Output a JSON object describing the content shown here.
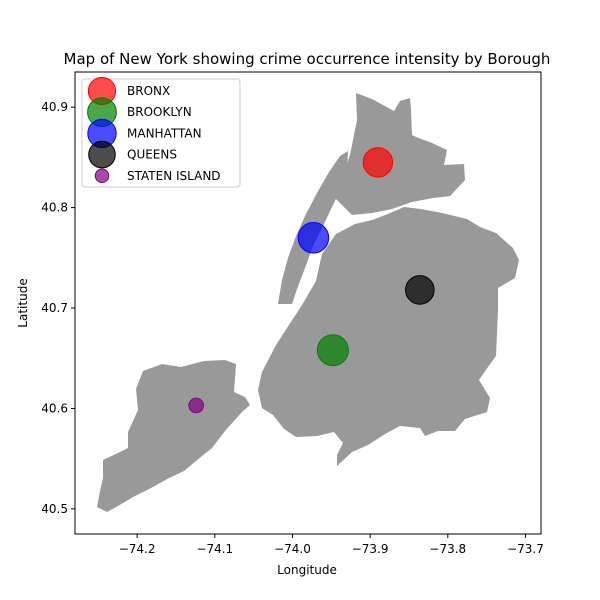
{
  "chart_data": {
    "type": "scatter",
    "title": "Map of New York showing crime occurrence intensity by Borough",
    "xlabel": "Longitude",
    "ylabel": "Latitude",
    "xlim": [
      -74.28,
      -73.68
    ],
    "ylim": [
      40.475,
      40.935
    ],
    "x_ticks": [
      -74.2,
      -74.1,
      -74.0,
      -73.9,
      -73.8,
      -73.7
    ],
    "x_tick_labels": [
      "−74.2",
      "−74.1",
      "−74.0",
      "−73.9",
      "−73.8",
      "−73.7"
    ],
    "y_ticks": [
      40.5,
      40.6,
      40.7,
      40.8,
      40.9
    ],
    "y_tick_labels": [
      "40.5",
      "40.6",
      "40.7",
      "40.8",
      "40.9"
    ],
    "grid": false,
    "legend_position": "upper-left",
    "map_fill_color": "#999999",
    "series": [
      {
        "name": "BRONX",
        "x": -73.89,
        "y": 40.845,
        "relative_size": 0.9,
        "color": "#ff0000"
      },
      {
        "name": "BROOKLYN",
        "x": -73.948,
        "y": 40.658,
        "relative_size": 1.0,
        "color": "#008000"
      },
      {
        "name": "MANHATTAN",
        "x": -73.973,
        "y": 40.77,
        "relative_size": 0.97,
        "color": "#0000ff"
      },
      {
        "name": "QUEENS",
        "x": -73.836,
        "y": 40.718,
        "relative_size": 0.85,
        "color": "#000000"
      },
      {
        "name": "STATEN ISLAND",
        "x": -74.124,
        "y": 40.603,
        "relative_size": 0.22,
        "color": "#800080"
      }
    ]
  }
}
